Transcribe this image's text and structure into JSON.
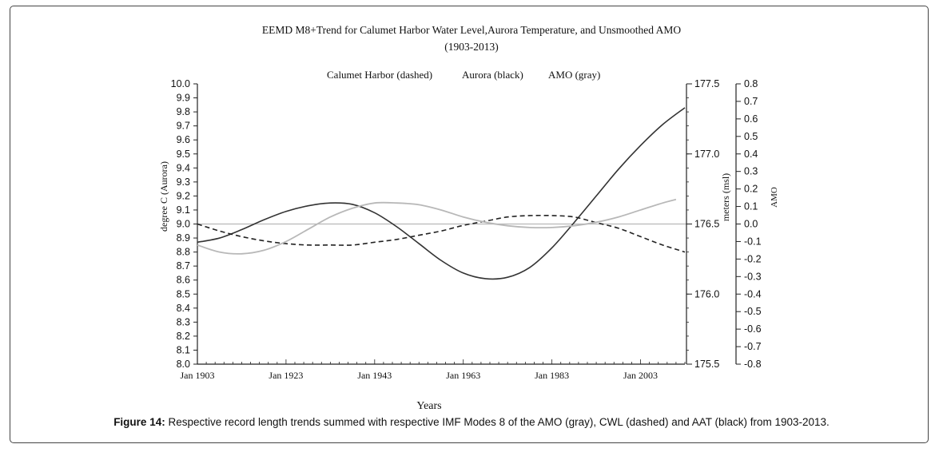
{
  "chart_data": {
    "type": "line",
    "title": "EEMD M8+Trend for Calumet Harbor Water Level,Aurora Temperature, and Unsmoothed AMO",
    "subtitle": "(1903-2013)",
    "legend": [
      "Calumet Harbor (dashed)",
      "Aurora (black)",
      "AMO (gray)"
    ],
    "xlabel": "Years",
    "x_ticks": [
      "Jan 1903",
      "Jan 1923",
      "Jan 1943",
      "Jan 1963",
      "Jan 1983",
      "Jan 2003"
    ],
    "x_tick_years": [
      1903,
      1923,
      1943,
      1963,
      1983,
      2003
    ],
    "xlim": [
      1903,
      2013
    ],
    "axes": {
      "left": {
        "label": "degree C (Aurora)",
        "ylim": [
          8.0,
          10.0
        ],
        "ticks": [
          "10.0",
          "9.9",
          "9.8",
          "9.7",
          "9.6",
          "9.5",
          "9.4",
          "9.3",
          "9.2",
          "9.1",
          "9.0",
          "8.9",
          "8.8",
          "8.7",
          "8.6",
          "8.5",
          "8.4",
          "8.3",
          "8.2",
          "8.1",
          "8.0"
        ],
        "tick_values": [
          10.0,
          9.9,
          9.8,
          9.7,
          9.6,
          9.5,
          9.4,
          9.3,
          9.2,
          9.1,
          9.0,
          8.9,
          8.8,
          8.7,
          8.6,
          8.5,
          8.4,
          8.3,
          8.2,
          8.1,
          8.0
        ]
      },
      "right1": {
        "label": "meters (msl)",
        "ylim": [
          175.5,
          177.5
        ],
        "ticks": [
          "177.5",
          "177.0",
          "176.5",
          "176.0",
          "175.5"
        ],
        "tick_values": [
          177.5,
          177.0,
          176.5,
          176.0,
          175.5
        ]
      },
      "right2": {
        "label": "AMO",
        "ylim": [
          -0.8,
          0.8
        ],
        "ticks": [
          "0.8",
          "0.7",
          "0.6",
          "0.5",
          "0.4",
          "0.3",
          "0.2",
          "0.1",
          "0.0",
          "-0.1",
          "-0.2",
          "-0.3",
          "-0.4",
          "-0.5",
          "-0.6",
          "-0.7",
          "-0.8"
        ],
        "tick_values": [
          0.8,
          0.7,
          0.6,
          0.5,
          0.4,
          0.3,
          0.2,
          0.1,
          0.0,
          -0.1,
          -0.2,
          -0.3,
          -0.4,
          -0.5,
          -0.6,
          -0.7,
          -0.8
        ]
      }
    },
    "series": [
      {
        "name": "Aurora (black)",
        "axis": "left",
        "color": "#333333",
        "dash": "none",
        "x": [
          1903,
          1908,
          1913,
          1918,
          1923,
          1928,
          1933,
          1938,
          1943,
          1948,
          1953,
          1958,
          1963,
          1968,
          1973,
          1978,
          1983,
          1988,
          1993,
          1998,
          2003,
          2008,
          2013
        ],
        "y": [
          8.87,
          8.9,
          8.96,
          9.03,
          9.09,
          9.13,
          9.15,
          9.14,
          9.08,
          8.98,
          8.86,
          8.74,
          8.65,
          8.61,
          8.62,
          8.69,
          8.83,
          9.01,
          9.2,
          9.39,
          9.56,
          9.71,
          9.83
        ]
      },
      {
        "name": "Calumet Harbor (dashed)",
        "axis": "right1",
        "color": "#222222",
        "dash": "6,4",
        "x": [
          1903,
          1908,
          1913,
          1918,
          1923,
          1928,
          1933,
          1938,
          1943,
          1948,
          1953,
          1958,
          1963,
          1968,
          1973,
          1978,
          1983,
          1988,
          1993,
          1998,
          2003,
          2008,
          2013
        ],
        "y": [
          176.5,
          176.45,
          176.41,
          176.38,
          176.36,
          176.35,
          176.35,
          176.35,
          176.37,
          176.39,
          176.42,
          176.45,
          176.49,
          176.52,
          176.55,
          176.56,
          176.56,
          176.55,
          176.51,
          176.47,
          176.41,
          176.35,
          176.3
        ]
      },
      {
        "name": "AMO (gray)",
        "axis": "right2",
        "color": "#b8b8b8",
        "dash": "none",
        "x": [
          1903,
          1908,
          1913,
          1918,
          1923,
          1928,
          1933,
          1938,
          1943,
          1948,
          1953,
          1958,
          1963,
          1968,
          1973,
          1978,
          1983,
          1988,
          1993,
          1998,
          2003,
          2008,
          2011
        ],
        "y": [
          -0.12,
          -0.16,
          -0.17,
          -0.15,
          -0.1,
          -0.03,
          0.04,
          0.09,
          0.12,
          0.12,
          0.11,
          0.08,
          0.04,
          0.01,
          -0.01,
          -0.02,
          -0.02,
          -0.01,
          0.01,
          0.04,
          0.08,
          0.12,
          0.14
        ]
      }
    ],
    "reference_line": {
      "axis": "right2",
      "value": 0.0,
      "color": "#b8b8b8"
    }
  },
  "caption": {
    "label": "Figure 14:",
    "text": " Respective record length trends summed with respective IMF Modes 8 of the AMO (gray), CWL (dashed) and AAT (black) from 1903-2013."
  }
}
